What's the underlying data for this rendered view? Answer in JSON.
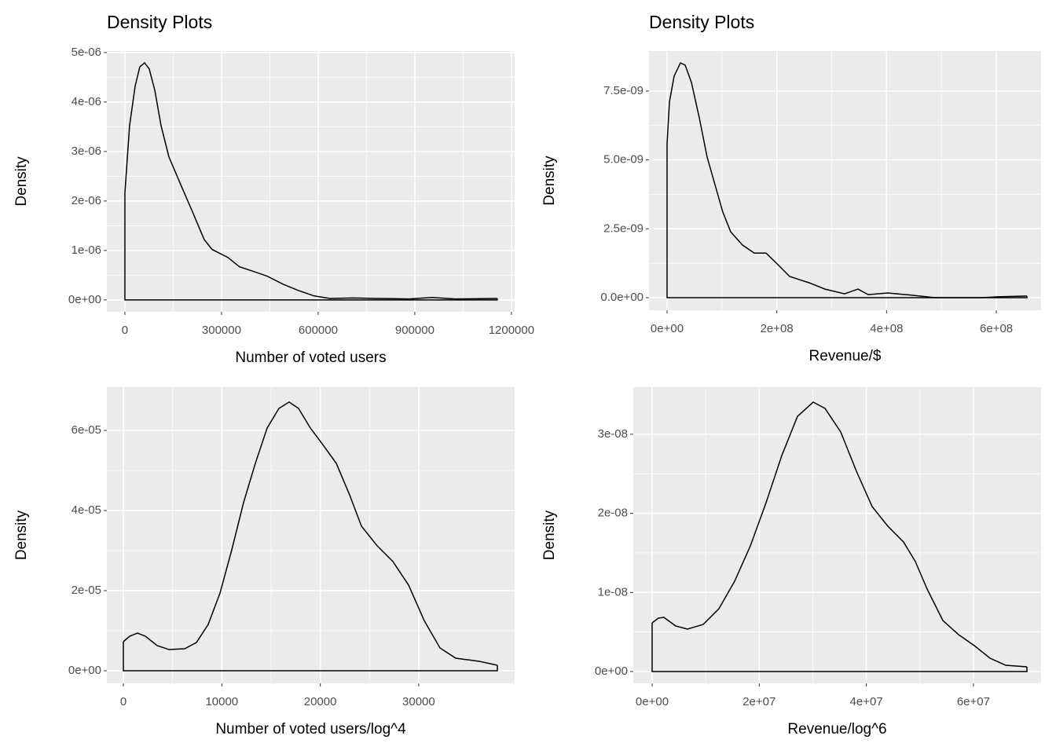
{
  "chart_data": [
    {
      "type": "density",
      "title": "Density Plots",
      "xlabel": "Number of voted users",
      "ylabel": "Density",
      "color": "#000000",
      "grid": true,
      "x": [
        0,
        14600,
        31700,
        46300,
        61000,
        75600,
        92700,
        112200,
        136600,
        173200,
        209800,
        246300,
        270700,
        319500,
        356100,
        392700,
        441500,
        490200,
        539000,
        587800,
        636600,
        709800,
        782900,
        880500,
        953700,
        1026800,
        1156100
      ],
      "values": [
        2.17e-06,
        3.52e-06,
        4.32e-06,
        4.71e-06,
        4.79e-06,
        4.67e-06,
        4.24e-06,
        3.52e-06,
        2.89e-06,
        2.33e-06,
        1.78e-06,
        1.22e-06,
        1.02e-06,
        8.6e-07,
        6.7e-07,
        5.9e-07,
        4.8e-07,
        3.2e-07,
        1.9e-07,
        8e-08,
        3e-08,
        4e-08,
        3e-08,
        2e-08,
        5e-08,
        2e-08,
        3e-08
      ],
      "xlim": [
        -56000,
        1210000
      ],
      "xticks": [
        0,
        300000,
        600000,
        900000,
        1200000
      ],
      "ylim": [
        -2.4e-07,
        5.03e-06
      ],
      "yticks": [
        {
          "value": 0,
          "label": "0e+00"
        },
        {
          "value": 1e-06,
          "label": "1e-06"
        },
        {
          "value": 2e-06,
          "label": "2e-06"
        },
        {
          "value": 3e-06,
          "label": "3e-06"
        },
        {
          "value": 4e-06,
          "label": "4e-06"
        },
        {
          "value": 5e-06,
          "label": "5e-06"
        }
      ]
    },
    {
      "type": "density",
      "title": "Density Plots",
      "xlabel": "Revenue/$",
      "ylabel": "Density",
      "color": "#000000",
      "grid": true,
      "x": [
        0,
        4300000,
        12900000,
        24300000,
        32900000,
        44400000,
        58700000,
        73000000,
        87300000,
        101600000,
        116000000,
        137400000,
        158900000,
        180400000,
        201900000,
        223300000,
        259100000,
        287800000,
        323500000,
        347900000,
        366500000,
        402300000,
        445200000,
        488200000,
        574100000,
        602700000,
        655700000
      ],
      "values": [
        5.59e-09,
        7.1e-09,
        8.04e-09,
        8.52e-09,
        8.44e-09,
        7.81e-09,
        6.53e-09,
        5.1e-09,
        4.1e-09,
        3.11e-09,
        2.39e-09,
        1.91e-09,
        1.62e-09,
        1.62e-09,
        1.2e-09,
        7.7e-10,
        5.4e-10,
        3.1e-10,
        1.4e-10,
        3.1e-10,
        1.1e-10,
        1.7e-10,
        9e-11,
        0,
        0,
        3e-11,
        6e-11
      ],
      "xlim": [
        -32900000,
        681500000
      ],
      "xticks": [
        {
          "value": 0,
          "label": "0e+00"
        },
        {
          "value": 200000000,
          "label": "2e+08"
        },
        {
          "value": 400000000,
          "label": "4e+08"
        },
        {
          "value": 600000000,
          "label": "6e+08"
        }
      ],
      "ylim": [
        -4.56e-10,
        8.95e-09
      ],
      "yticks": [
        {
          "value": 0,
          "label": "0.0e+00"
        },
        {
          "value": 2.5e-09,
          "label": "2.5e-09"
        },
        {
          "value": 5e-09,
          "label": "5.0e-09"
        },
        {
          "value": 7.5e-09,
          "label": "7.5e-09"
        }
      ]
    },
    {
      "type": "density",
      "xlabel": "Number of voted users/log^4",
      "ylabel": "Density",
      "color": "#000000",
      "grid": true,
      "x": [
        0,
        638,
        1437,
        2235,
        3432,
        4629,
        6225,
        7422,
        8619,
        9817,
        11014,
        12211,
        13408,
        14605,
        15802,
        16840,
        17798,
        18995,
        20192,
        21629,
        22986,
        24183,
        25779,
        27375,
        28971,
        30567,
        32163,
        33760,
        36154,
        37990
      ],
      "values": [
        7.25e-06,
        8.63e-06,
        9.41e-06,
        8.63e-06,
        6.27e-06,
        5.29e-06,
        5.49e-06,
        7.06e-06,
        1.157e-05,
        1.94e-05,
        3.02e-05,
        4.2e-05,
        5.18e-05,
        6.06e-05,
        6.55e-05,
        6.71e-05,
        6.55e-05,
        6.06e-05,
        5.67e-05,
        5.18e-05,
        4.39e-05,
        3.61e-05,
        3.12e-05,
        2.73e-05,
        2.14e-05,
        1.25e-05,
        5.69e-06,
        3.14e-06,
        2.35e-06,
        1.37e-06
      ],
      "xlim": [
        -1676,
        39745
      ],
      "xticks": [
        0,
        10000,
        20000,
        30000
      ],
      "ylim": [
        -3.14e-06,
        7.08e-05
      ],
      "yticks": [
        {
          "value": 0,
          "label": "0e+00"
        },
        {
          "value": 2e-05,
          "label": "2e-05"
        },
        {
          "value": 4e-05,
          "label": "4e-05"
        },
        {
          "value": 6e-05,
          "label": "6e-05"
        }
      ]
    },
    {
      "type": "density",
      "xlabel": "Revenue/log^6",
      "ylabel": "Density",
      "color": "#000000",
      "grid": true,
      "x": [
        0,
        1170000,
        2200000,
        4400000,
        6600000,
        9540000,
        12470000,
        15410000,
        18340000,
        21280000,
        24210000,
        27150000,
        30080000,
        32280000,
        35220000,
        38150000,
        41090000,
        44020000,
        46960000,
        49160000,
        51360000,
        54290000,
        57230000,
        60160000,
        63100000,
        66030000,
        69990000
      ],
      "values": [
        6.16e-09,
        6.75e-09,
        6.85e-09,
        5.76e-09,
        5.36e-09,
        5.96e-09,
        7.94e-09,
        1.142e-08,
        1.589e-08,
        2.135e-08,
        2.731e-08,
        3.227e-08,
        3.406e-08,
        3.327e-08,
        3.029e-08,
        2.532e-08,
        2.085e-08,
        1.837e-08,
        1.638e-08,
        1.39e-08,
        1.043e-08,
        6.45e-09,
        4.67e-09,
        3.28e-09,
        1.69e-09,
        7.9e-10,
        6e-10
      ],
      "xlim": [
        -3520000,
        72630000
      ],
      "xticks": [
        {
          "value": 0,
          "label": "0e+00"
        },
        {
          "value": 20000000,
          "label": "2e+07"
        },
        {
          "value": 40000000,
          "label": "4e+07"
        },
        {
          "value": 60000000,
          "label": "6e+07"
        }
      ],
      "ylim": [
        -1.49e-09,
        3.595e-08
      ],
      "yticks": [
        {
          "value": 0,
          "label": "0e+00"
        },
        {
          "value": 1e-08,
          "label": "1e-08"
        },
        {
          "value": 2e-08,
          "label": "2e-08"
        },
        {
          "value": 3e-08,
          "label": "3e-08"
        }
      ]
    }
  ]
}
